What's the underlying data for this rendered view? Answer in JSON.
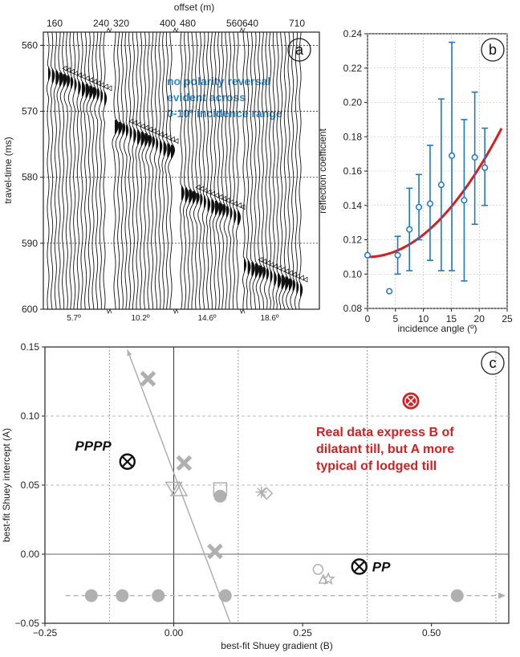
{
  "chart_data": [
    {
      "panel": "a",
      "type": "seismic-gather",
      "xlabel": "offset (m)",
      "ylabel": "travel-time (ms)",
      "ylim": [
        558,
        600
      ],
      "yticks": [
        "560",
        "570",
        "580",
        "590",
        "600"
      ],
      "yticks_num": [
        560,
        570,
        580,
        590,
        600
      ],
      "offset_tick_labels": [
        "160",
        "240",
        "320",
        "400",
        "480",
        "560",
        "640",
        "710"
      ],
      "gathers": [
        {
          "offset_start": 160,
          "offset_end": 240,
          "first_pick_ms": 563,
          "angle_label": "5.7º"
        },
        {
          "offset_start": 320,
          "offset_end": 400,
          "first_pick_ms": 571,
          "angle_label": "10.2º"
        },
        {
          "offset_start": 480,
          "offset_end": 560,
          "first_pick_ms": 581,
          "angle_label": "14.6º"
        },
        {
          "offset_start": 640,
          "offset_end": 710,
          "first_pick_ms": 592,
          "angle_label": "18.6º"
        }
      ],
      "annotation": [
        "no polarity reversal",
        "evident across",
        "0-10º incidence range"
      ],
      "letter": "a"
    },
    {
      "panel": "b",
      "type": "scatter",
      "xlabel": "incidence angle (º)",
      "ylabel": "reflection coefficient",
      "xlim": [
        0,
        25
      ],
      "ylim": [
        0.08,
        0.24
      ],
      "xticks": [
        "0",
        "5",
        "10",
        "15",
        "20",
        "25"
      ],
      "xticks_num": [
        0,
        5,
        10,
        15,
        20,
        25
      ],
      "yticks": [
        "0.08",
        "0.10",
        "0.12",
        "0.14",
        "0.16",
        "0.18",
        "0.20",
        "0.22",
        "0.24"
      ],
      "yticks_num": [
        0.08,
        0.1,
        0.12,
        0.14,
        0.16,
        0.18,
        0.2,
        0.22,
        0.24
      ],
      "points": [
        {
          "x": 0.0,
          "y": 0.111,
          "lo": null,
          "hi": null
        },
        {
          "x": 3.9,
          "y": 0.09,
          "lo": null,
          "hi": null
        },
        {
          "x": 5.4,
          "y": 0.111,
          "lo": 0.1,
          "hi": 0.122
        },
        {
          "x": 7.5,
          "y": 0.126,
          "lo": 0.102,
          "hi": 0.15
        },
        {
          "x": 9.2,
          "y": 0.139,
          "lo": 0.12,
          "hi": 0.158
        },
        {
          "x": 11.2,
          "y": 0.141,
          "lo": 0.108,
          "hi": 0.175
        },
        {
          "x": 13.2,
          "y": 0.152,
          "lo": 0.102,
          "hi": 0.202
        },
        {
          "x": 15.1,
          "y": 0.169,
          "lo": 0.102,
          "hi": 0.235
        },
        {
          "x": 17.3,
          "y": 0.143,
          "lo": 0.096,
          "hi": 0.19
        },
        {
          "x": 19.2,
          "y": 0.168,
          "lo": 0.129,
          "hi": 0.206
        },
        {
          "x": 21.0,
          "y": 0.162,
          "lo": 0.14,
          "hi": 0.185
        }
      ],
      "fit_curve": {
        "a": 0.11,
        "b_coef": 0.00013,
        "x_range": [
          0,
          24
        ]
      },
      "colors": {
        "points": "#1f78c8",
        "fit": "#d42020"
      },
      "letter": "b"
    },
    {
      "panel": "c",
      "type": "scatter",
      "xlabel": "best-fit Shuey gradient (B)",
      "ylabel": "best-fit Shuey intercept (A)",
      "xlim": [
        -0.25,
        0.65
      ],
      "ylim": [
        -0.05,
        0.15
      ],
      "xticks": [
        "−0.25",
        "0.00",
        "0.25",
        "0.50"
      ],
      "xticks_num": [
        -0.25,
        0.0,
        0.25,
        0.5
      ],
      "yticks": [
        "−0.05",
        "0.00",
        "0.05",
        "0.10",
        "0.15"
      ],
      "yticks_num": [
        -0.05,
        0.0,
        0.05,
        0.1,
        0.15
      ],
      "dotted_vlines": [
        -0.125,
        0.125,
        0.375,
        0.625
      ],
      "dashed_hlines": [
        0.05,
        0.1
      ],
      "trend_line": {
        "x1": 0.11,
        "y1": -0.05,
        "x2": -0.09,
        "y2": 0.148
      },
      "crosses": [
        [
          -0.05,
          0.127
        ],
        [
          0.02,
          0.066
        ],
        [
          0.08,
          0.002
        ]
      ],
      "grey_circles_top": [
        [
          0.09,
          0.042
        ]
      ],
      "dashed_arrow_y": -0.03,
      "arrow_circles": [
        [
          -0.16,
          -0.03
        ],
        [
          -0.1,
          -0.03
        ],
        [
          -0.03,
          -0.03
        ],
        [
          0.1,
          -0.03
        ],
        [
          0.55,
          -0.03
        ]
      ],
      "misc_symbols": [
        {
          "shape": "triangle-down",
          "x": 0.0,
          "y": 0.048
        },
        {
          "shape": "triangle-up",
          "x": 0.01,
          "y": 0.047
        },
        {
          "shape": "square",
          "x": 0.09,
          "y": 0.047
        },
        {
          "shape": "asterisk",
          "x": 0.17,
          "y": 0.045
        },
        {
          "shape": "diamond",
          "x": 0.18,
          "y": 0.044
        },
        {
          "shape": "open-circle",
          "x": 0.28,
          "y": -0.011
        },
        {
          "shape": "triangle",
          "x": 0.29,
          "y": -0.018
        },
        {
          "shape": "star",
          "x": 0.3,
          "y": -0.018
        }
      ],
      "labeled_points": [
        {
          "label": "PPPP",
          "x": -0.09,
          "y": 0.067,
          "style": "black"
        },
        {
          "label": "PP",
          "x": 0.36,
          "y": -0.009,
          "style": "black"
        },
        {
          "label": "",
          "x": 0.46,
          "y": 0.111,
          "style": "red"
        }
      ],
      "annotation": [
        "Real data express B of",
        "dilatant till, but A more",
        "typical of lodged till"
      ],
      "colors": {
        "grey": "#b0b0b0",
        "red": "#d42020"
      },
      "letter": "c"
    }
  ]
}
